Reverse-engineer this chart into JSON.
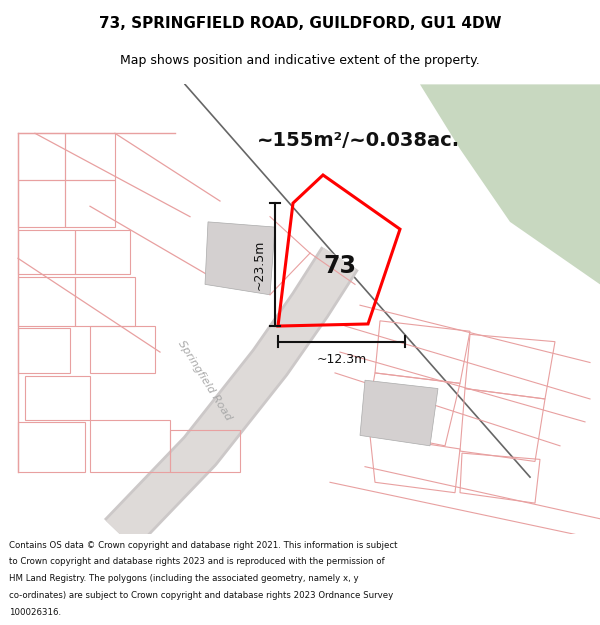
{
  "title_line1": "73, SPRINGFIELD ROAD, GUILDFORD, GU1 4DW",
  "title_line2": "Map shows position and indicative extent of the property.",
  "area_text": "~155m²/~0.038ac.",
  "label_73": "73",
  "dim_vertical": "~23.5m",
  "dim_horizontal": "~12.3m",
  "road_label": "Springfield Road",
  "footer_lines": [
    "Contains OS data © Crown copyright and database right 2021. This information is subject",
    "to Crown copyright and database rights 2023 and is reproduced with the permission of",
    "HM Land Registry. The polygons (including the associated geometry, namely x, y",
    "co-ordinates) are subject to Crown copyright and database rights 2023 Ordnance Survey",
    "100026316."
  ],
  "map_bg": "#eeecec",
  "green_area_color": "#c8d8c0",
  "property_outline_color": "#ff0000",
  "building_color": "#d4d0d0",
  "dim_line_color": "#111111",
  "title_bg": "#ffffff",
  "footer_bg": "#ffffff",
  "pink_line_color": "#e8a0a0",
  "road_band_color": "#ddd8d8",
  "dark_line_color": "#666666"
}
